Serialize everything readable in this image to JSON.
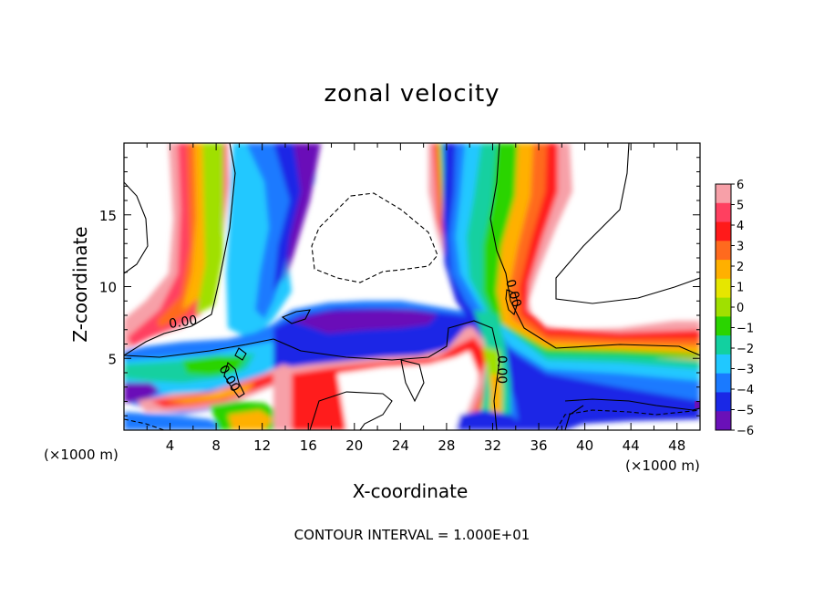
{
  "chart_data": {
    "type": "heatmap",
    "title": "zonal velocity",
    "xlabel": "X-coordinate",
    "ylabel": "Z-coordinate",
    "x_unit_left": "(×1000 m)",
    "x_unit_right": "(×1000 m)",
    "xlim": [
      0,
      50
    ],
    "ylim": [
      0,
      20
    ],
    "x_ticks": [
      "4",
      "8",
      "12",
      "16",
      "20",
      "24",
      "28",
      "32",
      "36",
      "40",
      "44",
      "48"
    ],
    "y_ticks": [
      "5",
      "10",
      "15"
    ],
    "colorbar": {
      "labels": [
        "6",
        "5",
        "4",
        "3",
        "2",
        "1",
        "0",
        "−1",
        "−2",
        "−3",
        "−4",
        "−5",
        "−6"
      ],
      "colors": [
        "#f7a0a8",
        "#ff4060",
        "#ff1a1a",
        "#ff6a1e",
        "#ffb000",
        "#e6e600",
        "#a0e000",
        "#2ad400",
        "#12d0a0",
        "#20c8ff",
        "#1a7aff",
        "#1a28e6",
        "#6a10b8"
      ]
    },
    "contour_labels": [
      "0.00",
      "0.00",
      "0.00",
      "0.00"
    ],
    "contour_interval_text": "CONTOUR INTERVAL = 1.000E+01"
  }
}
